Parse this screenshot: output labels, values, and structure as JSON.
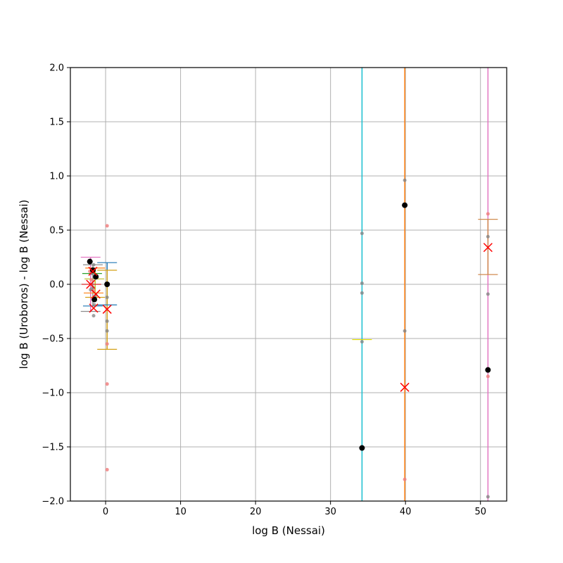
{
  "chart_data": {
    "type": "scatter",
    "title": "",
    "xlabel": "log B (Nessai)",
    "ylabel": "log B (Uroboros) - log B (Nessai)",
    "xlim": [
      -4.7,
      53.5
    ],
    "ylim": [
      -2.0,
      2.0
    ],
    "grid": true,
    "legend": "none",
    "xticks": [
      0,
      10,
      20,
      30,
      40,
      50
    ],
    "xtick_labels": [
      "0",
      "10",
      "20",
      "30",
      "40",
      "50"
    ],
    "yticks": [
      -2.0,
      -1.5,
      -1.0,
      -0.5,
      0.0,
      0.5,
      1.0,
      1.5,
      2.0
    ],
    "ytick_labels": [
      "−2.0",
      "−1.5",
      "−1.0",
      "−0.5",
      "0.0",
      "0.5",
      "1.0",
      "1.5",
      "2.0"
    ],
    "vertical_error_bars": [
      {
        "x": 34.2,
        "y_low": -2.0,
        "y_high": 2.0,
        "color": "#17becf"
      },
      {
        "x": 39.9,
        "y_low": -2.0,
        "y_high": 2.0,
        "color": "#ff7f0e"
      },
      {
        "x": 51.0,
        "y_low": -2.0,
        "y_high": 2.0,
        "color": "#e377c2"
      },
      {
        "x": 51.0,
        "y_low": 0.09,
        "y_high": 0.6,
        "color": "#d08c50"
      },
      {
        "x": 0.2,
        "y_low": -0.19,
        "y_high": 0.2,
        "color": "#1f77b4"
      },
      {
        "x": 0.2,
        "y_low": -0.6,
        "y_high": 0.13,
        "color": "#d4a017"
      },
      {
        "x": -2.0,
        "y_low": -0.25,
        "y_high": 0.25,
        "color": "#e377c2"
      },
      {
        "x": -1.7,
        "y_low": -0.2,
        "y_high": 0.18,
        "color": "#8c8c8c"
      },
      {
        "x": -1.4,
        "y_low": -0.12,
        "y_high": 0.15,
        "color": "#bcbd22"
      }
    ],
    "cap_lines": [
      {
        "x": 34.2,
        "y": -0.51,
        "color": "#e3e000"
      },
      {
        "x": 51.0,
        "y": 0.6,
        "color": "#d08c50"
      },
      {
        "x": 51.0,
        "y": 0.09,
        "color": "#d08c50"
      },
      {
        "x": 0.2,
        "y": 0.2,
        "color": "#1f77b4"
      },
      {
        "x": 0.2,
        "y": -0.19,
        "color": "#1f77b4"
      },
      {
        "x": 0.2,
        "y": 0.13,
        "color": "#d4a017"
      },
      {
        "x": 0.2,
        "y": -0.6,
        "color": "#d4a017"
      },
      {
        "x": -2.0,
        "y": 0.25,
        "color": "#e377c2"
      },
      {
        "x": -2.0,
        "y": -0.25,
        "color": "#8c8c8c"
      },
      {
        "x": -1.7,
        "y": 0.18,
        "color": "#8c8c8c"
      },
      {
        "x": -1.7,
        "y": -0.2,
        "color": "#1f77b4"
      },
      {
        "x": -1.4,
        "y": 0.15,
        "color": "#ff7f0e"
      },
      {
        "x": -1.4,
        "y": -0.12,
        "color": "#d4a017"
      },
      {
        "x": -1.8,
        "y": 0.1,
        "color": "#2ca02c"
      },
      {
        "x": -1.6,
        "y": -0.08,
        "color": "#ff7f0e"
      },
      {
        "x": -1.9,
        "y": 0.0,
        "color": "#d62728"
      },
      {
        "x": -1.5,
        "y": 0.05,
        "color": "#bcbd22"
      }
    ],
    "gray_samples": [
      {
        "x": 34.2,
        "y": 0.47
      },
      {
        "x": 34.2,
        "y": 0.01
      },
      {
        "x": 34.2,
        "y": -0.08
      },
      {
        "x": 34.2,
        "y": -0.53
      },
      {
        "x": 39.9,
        "y": 0.96
      },
      {
        "x": 39.9,
        "y": -0.43
      },
      {
        "x": 51.0,
        "y": 0.44
      },
      {
        "x": 51.0,
        "y": -0.09
      },
      {
        "x": 51.0,
        "y": -1.96
      },
      {
        "x": 0.2,
        "y": -0.12
      },
      {
        "x": 0.2,
        "y": -0.34
      },
      {
        "x": 0.2,
        "y": -0.43
      },
      {
        "x": -1.6,
        "y": 0.18
      },
      {
        "x": -1.5,
        "y": 0.14
      },
      {
        "x": -1.8,
        "y": 0.1
      },
      {
        "x": -1.4,
        "y": 0.06
      },
      {
        "x": -1.7,
        "y": -0.03
      },
      {
        "x": -1.3,
        "y": -0.1
      },
      {
        "x": -1.5,
        "y": -0.19
      },
      {
        "x": -1.6,
        "y": -0.29
      },
      {
        "x": -2.0,
        "y": -0.05
      }
    ],
    "pink_samples": [
      {
        "x": 0.2,
        "y": 0.54
      },
      {
        "x": 0.2,
        "y": -0.55
      },
      {
        "x": 0.2,
        "y": -0.92
      },
      {
        "x": 0.2,
        "y": -1.71
      },
      {
        "x": 39.9,
        "y": -1.8
      },
      {
        "x": 51.0,
        "y": 0.65
      },
      {
        "x": 51.0,
        "y": -0.85
      },
      {
        "x": -1.9,
        "y": 0.04
      },
      {
        "x": -1.6,
        "y": -0.06
      },
      {
        "x": -2.1,
        "y": 0.12
      }
    ],
    "black_points": [
      {
        "x": 34.2,
        "y": -1.51
      },
      {
        "x": 39.9,
        "y": 0.73
      },
      {
        "x": 51.0,
        "y": -0.79
      },
      {
        "x": 0.2,
        "y": 0.0
      },
      {
        "x": -2.1,
        "y": 0.21
      },
      {
        "x": -1.7,
        "y": 0.13
      },
      {
        "x": -1.3,
        "y": 0.07
      },
      {
        "x": -1.5,
        "y": -0.14
      }
    ],
    "red_x_markers": [
      {
        "x": 39.9,
        "y": -0.95
      },
      {
        "x": 51.0,
        "y": 0.34
      },
      {
        "x": 0.2,
        "y": -0.23
      },
      {
        "x": -2.0,
        "y": 0.0
      },
      {
        "x": -1.7,
        "y": 0.12
      },
      {
        "x": -1.3,
        "y": -0.09
      },
      {
        "x": -1.6,
        "y": -0.22
      }
    ]
  }
}
